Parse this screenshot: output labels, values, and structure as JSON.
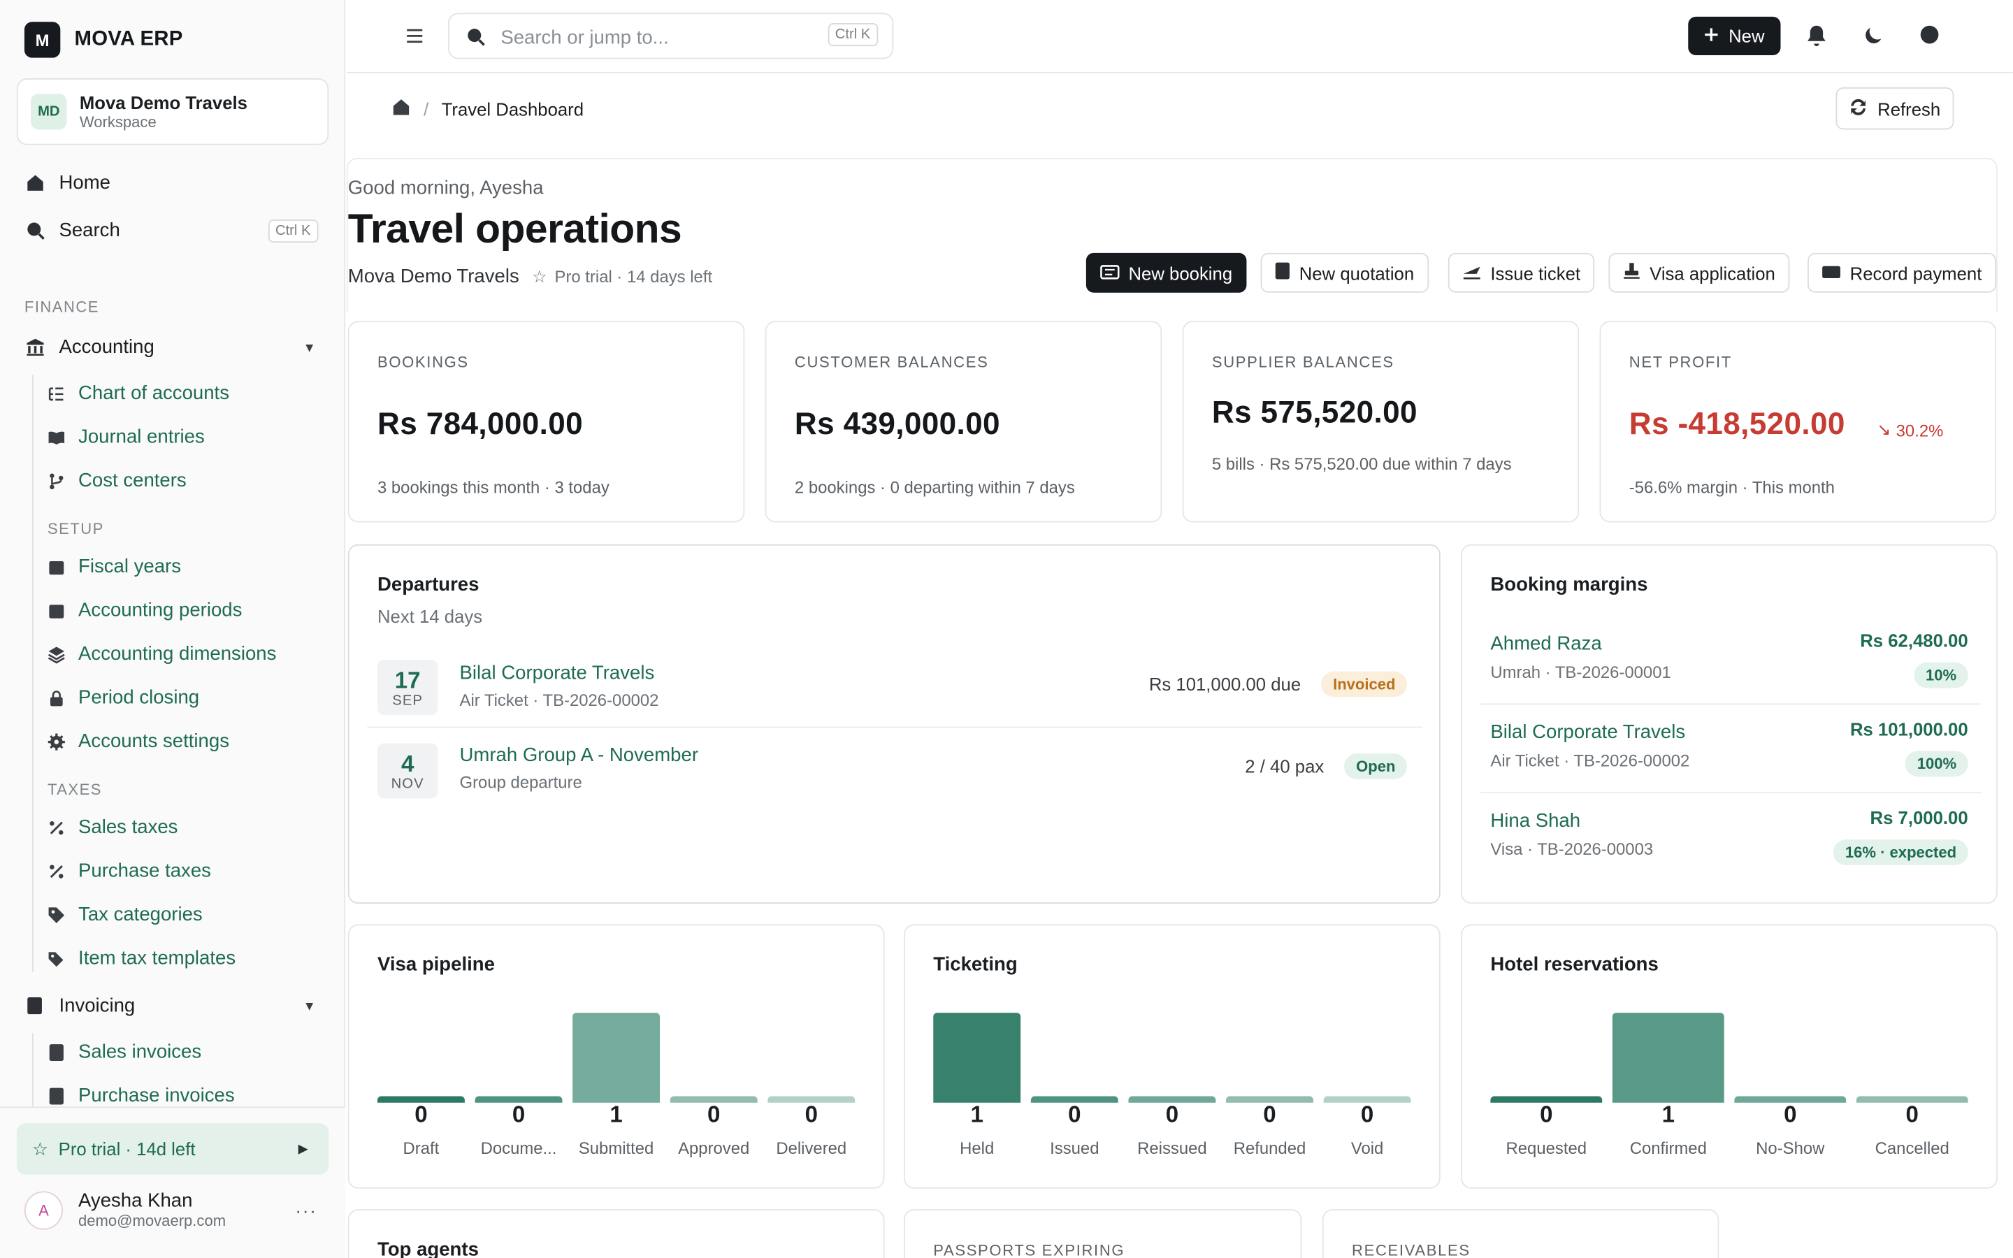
{
  "brand": {
    "logo": "M",
    "name": "MOVA ERP"
  },
  "workspace": {
    "initials": "MD",
    "name": "Mova Demo Travels",
    "sub": "Workspace"
  },
  "sidebar": {
    "home": "Home",
    "search": "Search",
    "search_kbd": "Ctrl K",
    "finance_label": "FINANCE",
    "accounting": "Accounting",
    "accounting_items": [
      "Chart of accounts",
      "Journal entries",
      "Cost centers"
    ],
    "setup_label": "SETUP",
    "setup_items": [
      "Fiscal years",
      "Accounting periods",
      "Accounting dimensions",
      "Period closing",
      "Accounts settings"
    ],
    "taxes_label": "TAXES",
    "tax_items": [
      "Sales taxes",
      "Purchase taxes",
      "Tax categories",
      "Item tax templates"
    ],
    "invoicing": "Invoicing",
    "invoicing_items": [
      "Sales invoices",
      "Purchase invoices"
    ],
    "trial": "Pro trial · 14d left",
    "user": {
      "initial": "A",
      "name": "Ayesha Khan",
      "email": "demo@movaerp.com",
      "more": "···"
    }
  },
  "topbar": {
    "search_placeholder": "Search or jump to...",
    "search_kbd": "Ctrl K",
    "new_label": "New"
  },
  "breadcrumb": {
    "sep": "/",
    "current": "Travel Dashboard"
  },
  "refresh_label": "Refresh",
  "hero": {
    "greeting": "Good morning, Ayesha",
    "title": "Travel operations",
    "org": "Mova Demo Travels",
    "plan": "Pro trial · 14 days left"
  },
  "quick_actions": [
    "New booking",
    "New quotation",
    "Issue ticket",
    "Visa application",
    "Record payment"
  ],
  "kpis": [
    {
      "label": "BOOKINGS",
      "value": "Rs 784,000.00",
      "sub": "3 bookings this month · 3 today"
    },
    {
      "label": "CUSTOMER BALANCES",
      "value": "Rs 439,000.00",
      "sub": "2 bookings · 0 departing within 7 days"
    },
    {
      "label": "SUPPLIER BALANCES",
      "value": "Rs 575,520.00",
      "sub": "5 bills · Rs 575,520.00 due within 7 days"
    },
    {
      "label": "NET PROFIT",
      "value": "Rs -418,520.00",
      "delta": "30.2%",
      "sub": "-56.6% margin · This month"
    }
  ],
  "departures": {
    "title": "Departures",
    "sub": "Next 14 days",
    "rows": [
      {
        "day": "17",
        "month": "SEP",
        "name": "Bilal Corporate Travels",
        "meta": "Air Ticket · TB-2026-00002",
        "right": "Rs 101,000.00 due",
        "status": "Invoiced"
      },
      {
        "day": "4",
        "month": "NOV",
        "name": "Umrah Group A - November",
        "meta": "Group departure",
        "right": "2 / 40 pax",
        "status": "Open"
      }
    ]
  },
  "margins": {
    "title": "Booking margins",
    "rows": [
      {
        "name": "Ahmed Raza",
        "meta": "Umrah · TB-2026-00001",
        "amount": "Rs 62,480.00",
        "pill": "10%"
      },
      {
        "name": "Bilal Corporate Travels",
        "meta": "Air Ticket · TB-2026-00002",
        "amount": "Rs 101,000.00",
        "pill": "100%"
      },
      {
        "name": "Hina Shah",
        "meta": "Visa · TB-2026-00003",
        "amount": "Rs 7,000.00",
        "pill": "16% · expected"
      }
    ]
  },
  "visa": {
    "title": "Visa pipeline",
    "categories": [
      "Draft",
      "Docume...",
      "Submitted",
      "Approved",
      "Delivered"
    ],
    "values": [
      0,
      0,
      1,
      0,
      0
    ]
  },
  "ticketing": {
    "title": "Ticketing",
    "categories": [
      "Held",
      "Issued",
      "Reissued",
      "Refunded",
      "Void"
    ],
    "values": [
      1,
      0,
      0,
      0,
      0
    ]
  },
  "hotel": {
    "title": "Hotel reservations",
    "categories": [
      "Requested",
      "Confirmed",
      "No-Show",
      "Cancelled"
    ],
    "values": [
      0,
      1,
      0,
      0
    ]
  },
  "bottom": {
    "top_agents": "Top agents",
    "passports": "PASSPORTS EXPIRING",
    "receivables": "RECEIVABLES"
  },
  "colors": {
    "accent": "#1e6b53",
    "danger": "#c63b32",
    "dark": "#16191d"
  }
}
